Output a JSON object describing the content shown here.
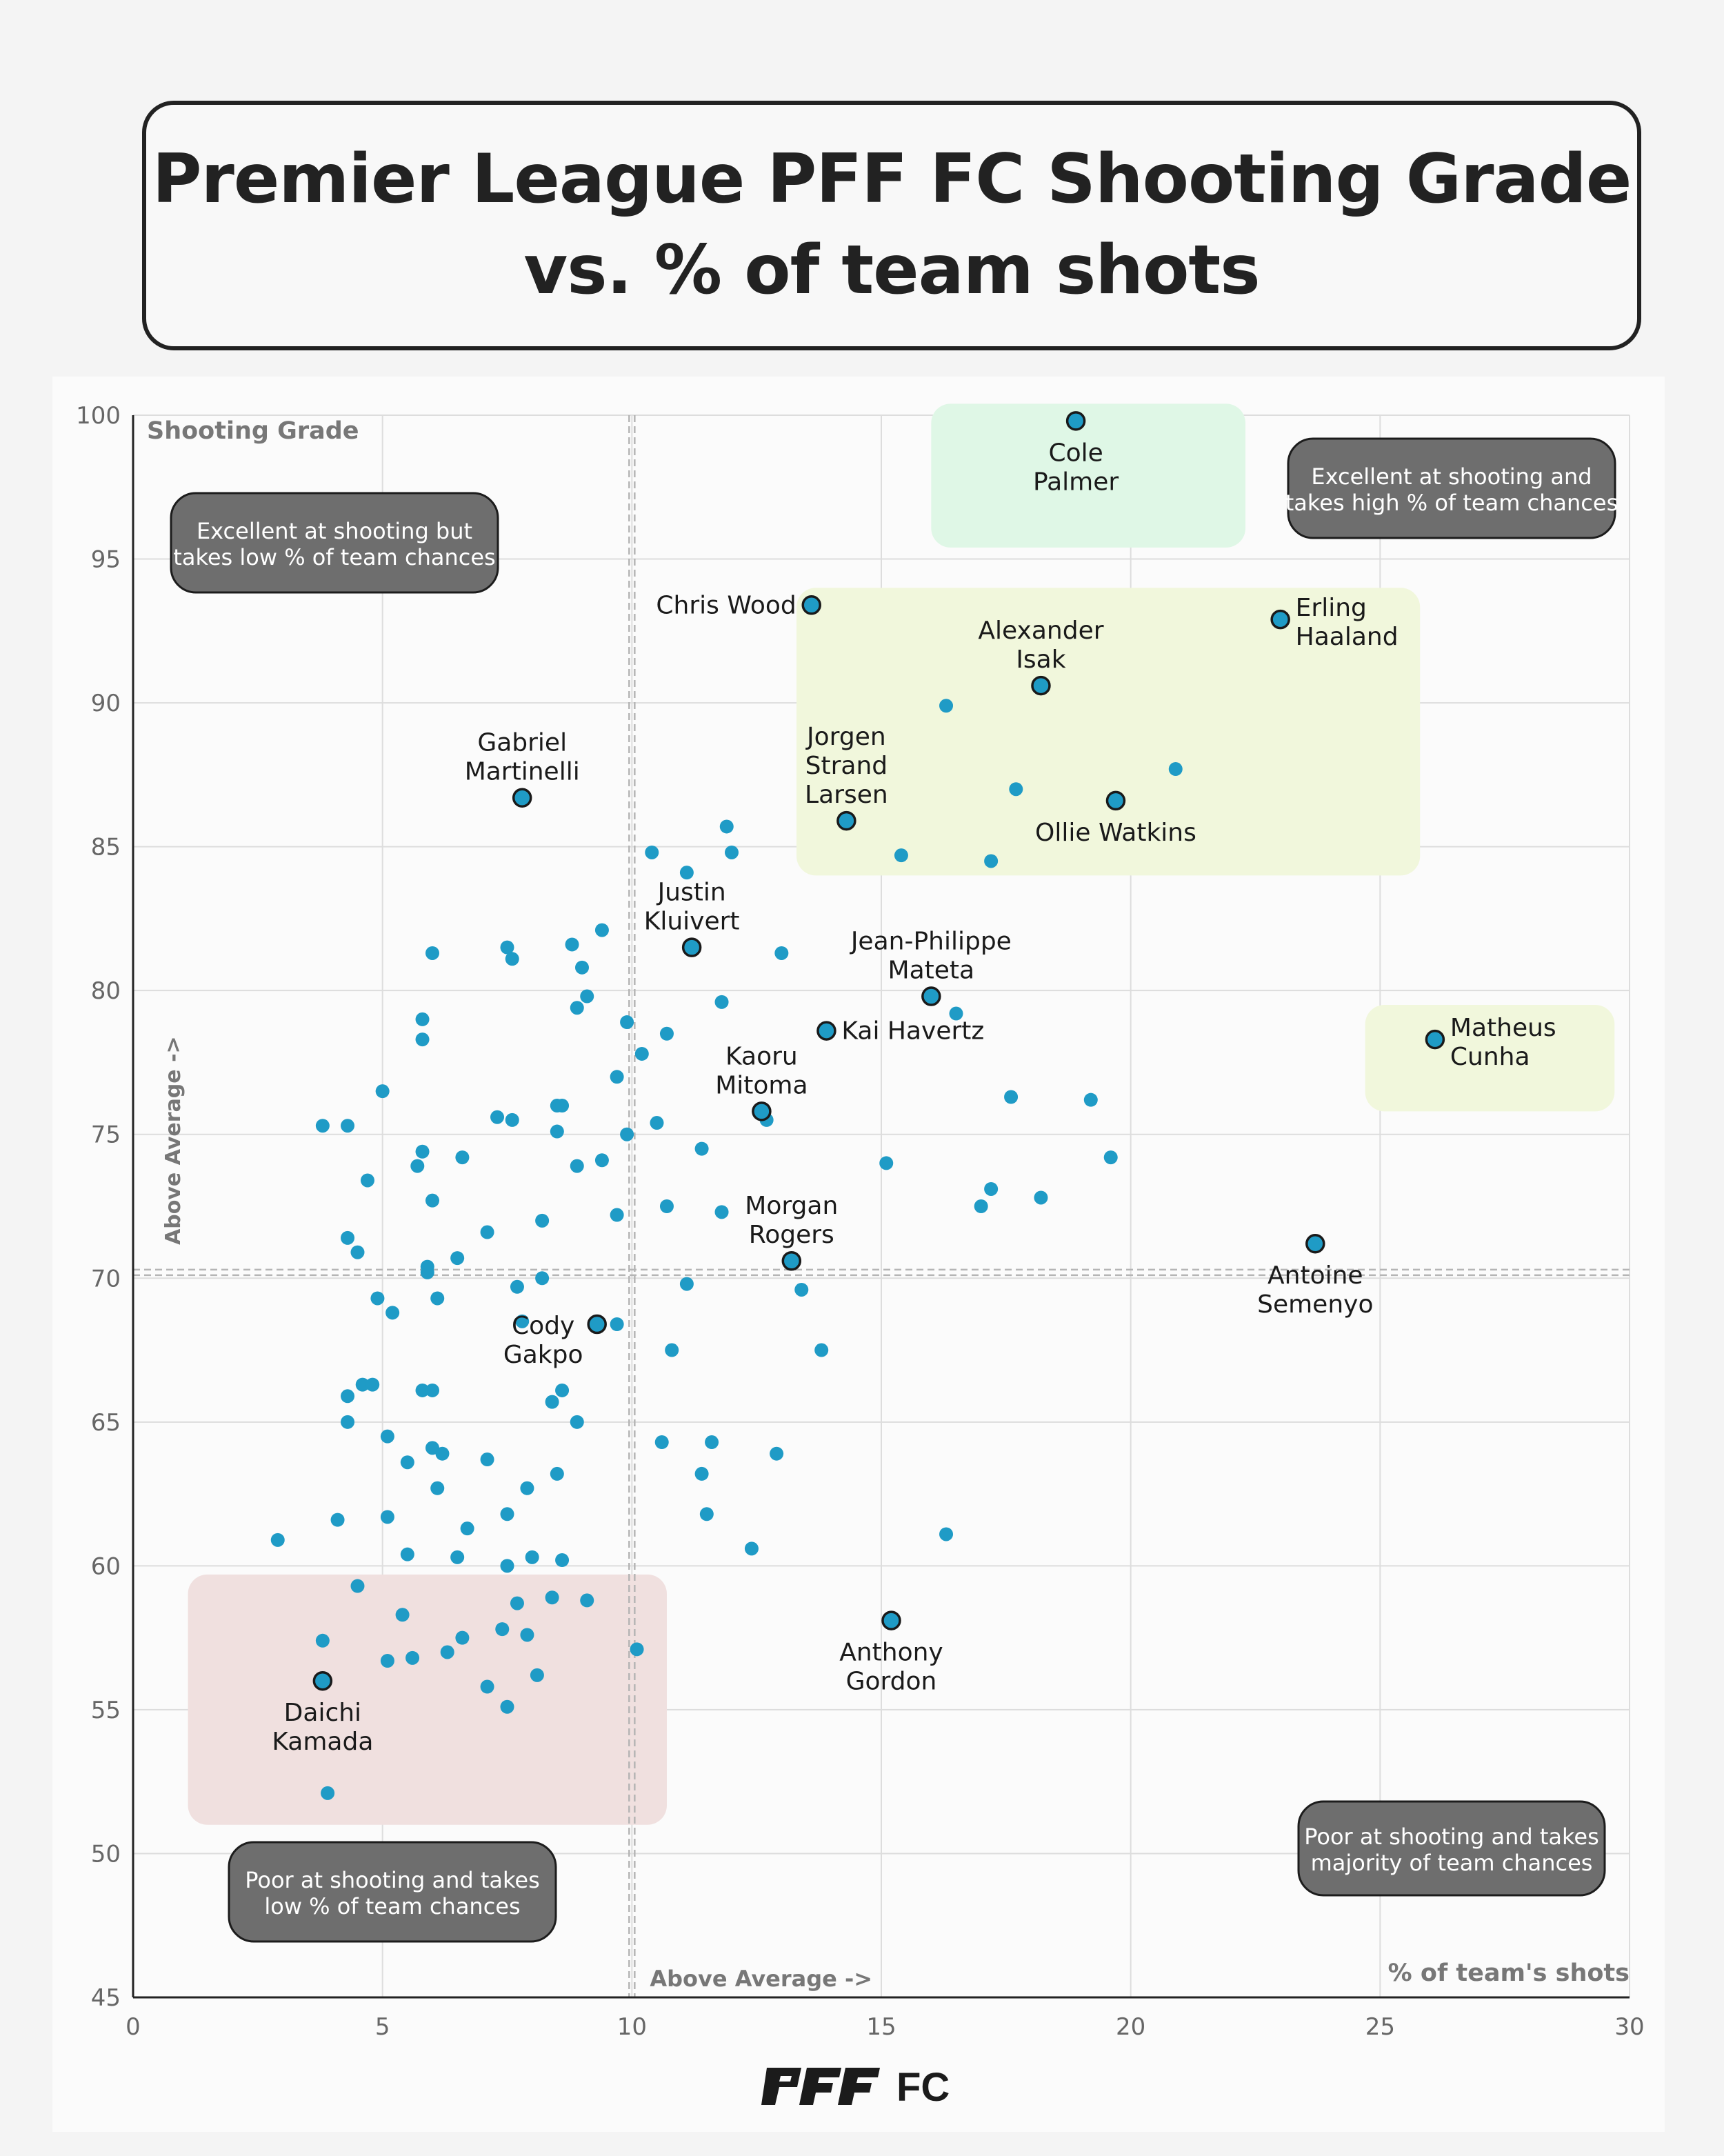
{
  "title": {
    "line1": "Premier League PFF FC Shooting Grade",
    "line2": "vs. % of team shots"
  },
  "logo_text": "PFF FC",
  "colors": {
    "point": "#1f9bc6",
    "axis": "#222222",
    "grid": "#dddddd",
    "callout": "#6e6e6e",
    "zone_green": "#dff7e6",
    "zone_yellow": "#f1f7dc",
    "zone_red": "#f0e0df"
  },
  "chart_data": {
    "type": "scatter",
    "title": "Premier League PFF FC Shooting Grade vs. % of team shots",
    "xlabel": "% of team's shots",
    "ylabel": "Shooting Grade",
    "xlim": [
      0,
      30
    ],
    "ylim": [
      45,
      100
    ],
    "xticks": [
      0,
      5,
      10,
      15,
      20,
      25,
      30
    ],
    "yticks": [
      45,
      50,
      55,
      60,
      65,
      70,
      75,
      80,
      85,
      90,
      95,
      100
    ],
    "avg_x": 10,
    "avg_y": 70.2,
    "avg_x_label": "Above Average ->",
    "avg_y_label": "Above Average ->",
    "quadrant_labels": [
      {
        "id": "top-left",
        "lines": [
          "Excellent at shooting but",
          "takes low % of team chances"
        ]
      },
      {
        "id": "top-right",
        "lines": [
          "Excellent at shooting and",
          "takes high % of team chances"
        ]
      },
      {
        "id": "bottom-left",
        "lines": [
          "Poor at shooting and takes",
          "low % of team chances"
        ]
      },
      {
        "id": "bottom-right",
        "lines": [
          "Poor at shooting and takes",
          "majority of team chances"
        ]
      }
    ],
    "highlight_zones": [
      {
        "id": "green",
        "x": [
          16,
          22.3
        ],
        "y": [
          95.4,
          100.4
        ]
      },
      {
        "id": "yellow",
        "x": [
          13.3,
          25.8
        ],
        "y": [
          84,
          94
        ]
      },
      {
        "id": "yellow",
        "x": [
          24.7,
          29.7
        ],
        "y": [
          75.8,
          79.5
        ]
      },
      {
        "id": "red",
        "x": [
          1.1,
          10.7
        ],
        "y": [
          51,
          59.7
        ]
      }
    ],
    "labeled_players": [
      {
        "name": [
          "Cole",
          "Palmer"
        ],
        "x": 18.9,
        "y": 99.8,
        "pos": "below"
      },
      {
        "name": [
          "Chris Wood"
        ],
        "x": 13.6,
        "y": 93.4,
        "pos": "left"
      },
      {
        "name": [
          "Alexander",
          "Isak"
        ],
        "x": 18.2,
        "y": 90.6,
        "pos": "above"
      },
      {
        "name": [
          "Erling",
          "Haaland"
        ],
        "x": 23.0,
        "y": 92.9,
        "pos": "right"
      },
      {
        "name": [
          "Jorgen",
          "Strand",
          "Larsen"
        ],
        "x": 14.3,
        "y": 85.9,
        "pos": "above"
      },
      {
        "name": [
          "Ollie Watkins"
        ],
        "x": 19.7,
        "y": 86.6,
        "pos": "below"
      },
      {
        "name": [
          "Gabriel",
          "Martinelli"
        ],
        "x": 7.8,
        "y": 86.7,
        "pos": "above"
      },
      {
        "name": [
          "Justin",
          "Kluivert"
        ],
        "x": 11.2,
        "y": 81.5,
        "pos": "above"
      },
      {
        "name": [
          "Jean-Philippe",
          "Mateta"
        ],
        "x": 16.0,
        "y": 79.8,
        "pos": "above"
      },
      {
        "name": [
          "Kai Havertz"
        ],
        "x": 13.9,
        "y": 78.6,
        "pos": "right"
      },
      {
        "name": [
          "Matheus",
          "Cunha"
        ],
        "x": 26.1,
        "y": 78.3,
        "pos": "right"
      },
      {
        "name": [
          "Kaoru",
          "Mitoma"
        ],
        "x": 12.6,
        "y": 75.8,
        "pos": "above"
      },
      {
        "name": [
          "Morgan",
          "Rogers"
        ],
        "x": 13.2,
        "y": 70.6,
        "pos": "above"
      },
      {
        "name": [
          "Antoine",
          "Semenyo"
        ],
        "x": 23.7,
        "y": 71.2,
        "pos": "below"
      },
      {
        "name": [
          "Cody",
          "Gakpo"
        ],
        "x": 9.3,
        "y": 68.4,
        "pos": "leftbelow"
      },
      {
        "name": [
          "Anthony",
          "Gordon"
        ],
        "x": 15.2,
        "y": 58.1,
        "pos": "below"
      },
      {
        "name": [
          "Daichi",
          "Kamada"
        ],
        "x": 3.8,
        "y": 56.0,
        "pos": "below"
      }
    ],
    "points": [
      [
        16.3,
        89.9
      ],
      [
        17.7,
        87.0
      ],
      [
        20.9,
        87.7
      ],
      [
        15.4,
        84.7
      ],
      [
        17.2,
        84.5
      ],
      [
        11.9,
        85.7
      ],
      [
        10.4,
        84.8
      ],
      [
        12.0,
        84.8
      ],
      [
        11.1,
        84.1
      ],
      [
        9.4,
        82.1
      ],
      [
        8.8,
        81.6
      ],
      [
        6.0,
        81.3
      ],
      [
        7.5,
        81.5
      ],
      [
        7.6,
        81.1
      ],
      [
        9.0,
        80.8
      ],
      [
        13.0,
        81.3
      ],
      [
        9.1,
        79.8
      ],
      [
        8.9,
        79.4
      ],
      [
        11.8,
        79.6
      ],
      [
        16.5,
        79.2
      ],
      [
        9.9,
        78.9
      ],
      [
        10.7,
        78.5
      ],
      [
        5.8,
        79.0
      ],
      [
        5.8,
        78.3
      ],
      [
        10.2,
        77.8
      ],
      [
        9.7,
        77.0
      ],
      [
        5.0,
        76.5
      ],
      [
        3.8,
        75.3
      ],
      [
        4.3,
        75.3
      ],
      [
        8.5,
        76.0
      ],
      [
        8.6,
        76.0
      ],
      [
        7.3,
        75.6
      ],
      [
        7.6,
        75.5
      ],
      [
        10.5,
        75.4
      ],
      [
        12.7,
        75.5
      ],
      [
        17.6,
        76.3
      ],
      [
        19.2,
        76.2
      ],
      [
        8.5,
        75.1
      ],
      [
        9.9,
        75.0
      ],
      [
        5.8,
        74.4
      ],
      [
        5.7,
        73.9
      ],
      [
        6.6,
        74.2
      ],
      [
        8.9,
        73.9
      ],
      [
        9.4,
        74.1
      ],
      [
        11.4,
        74.5
      ],
      [
        15.1,
        74.0
      ],
      [
        19.6,
        74.2
      ],
      [
        4.7,
        73.4
      ],
      [
        17.2,
        73.1
      ],
      [
        6.0,
        72.7
      ],
      [
        10.7,
        72.5
      ],
      [
        11.8,
        72.3
      ],
      [
        17.0,
        72.5
      ],
      [
        18.2,
        72.8
      ],
      [
        9.7,
        72.2
      ],
      [
        8.2,
        72.0
      ],
      [
        7.1,
        71.6
      ],
      [
        4.3,
        71.4
      ],
      [
        4.5,
        70.9
      ],
      [
        6.5,
        70.7
      ],
      [
        5.9,
        70.4
      ],
      [
        5.9,
        70.2
      ],
      [
        7.7,
        69.7
      ],
      [
        8.2,
        70.0
      ],
      [
        11.1,
        69.8
      ],
      [
        13.4,
        69.6
      ],
      [
        4.9,
        69.3
      ],
      [
        6.1,
        69.3
      ],
      [
        5.2,
        68.8
      ],
      [
        7.8,
        68.5
      ],
      [
        9.7,
        68.4
      ],
      [
        10.8,
        67.5
      ],
      [
        13.8,
        67.5
      ],
      [
        4.6,
        66.3
      ],
      [
        4.8,
        66.3
      ],
      [
        4.3,
        65.9
      ],
      [
        5.8,
        66.1
      ],
      [
        6.0,
        66.1
      ],
      [
        8.6,
        66.1
      ],
      [
        8.4,
        65.7
      ],
      [
        4.3,
        65.0
      ],
      [
        8.9,
        65.0
      ],
      [
        5.1,
        64.5
      ],
      [
        10.6,
        64.3
      ],
      [
        11.6,
        64.3
      ],
      [
        6.0,
        64.1
      ],
      [
        6.2,
        63.9
      ],
      [
        12.9,
        63.9
      ],
      [
        5.5,
        63.6
      ],
      [
        7.1,
        63.7
      ],
      [
        11.4,
        63.2
      ],
      [
        8.5,
        63.2
      ],
      [
        6.1,
        62.7
      ],
      [
        7.9,
        62.7
      ],
      [
        4.1,
        61.6
      ],
      [
        5.1,
        61.7
      ],
      [
        7.5,
        61.8
      ],
      [
        11.5,
        61.8
      ],
      [
        6.7,
        61.3
      ],
      [
        2.9,
        60.9
      ],
      [
        16.3,
        61.1
      ],
      [
        12.4,
        60.6
      ],
      [
        5.5,
        60.4
      ],
      [
        6.5,
        60.3
      ],
      [
        8.0,
        60.3
      ],
      [
        8.6,
        60.2
      ],
      [
        7.5,
        60.0
      ],
      [
        4.5,
        59.3
      ],
      [
        7.7,
        58.7
      ],
      [
        8.4,
        58.9
      ],
      [
        9.1,
        58.8
      ],
      [
        5.4,
        58.3
      ],
      [
        7.4,
        57.8
      ],
      [
        7.9,
        57.6
      ],
      [
        3.8,
        57.4
      ],
      [
        6.6,
        57.5
      ],
      [
        6.3,
        57.0
      ],
      [
        10.1,
        57.1
      ],
      [
        5.1,
        56.7
      ],
      [
        5.6,
        56.8
      ],
      [
        8.1,
        56.2
      ],
      [
        7.1,
        55.8
      ],
      [
        7.5,
        55.1
      ],
      [
        3.9,
        52.1
      ]
    ]
  }
}
